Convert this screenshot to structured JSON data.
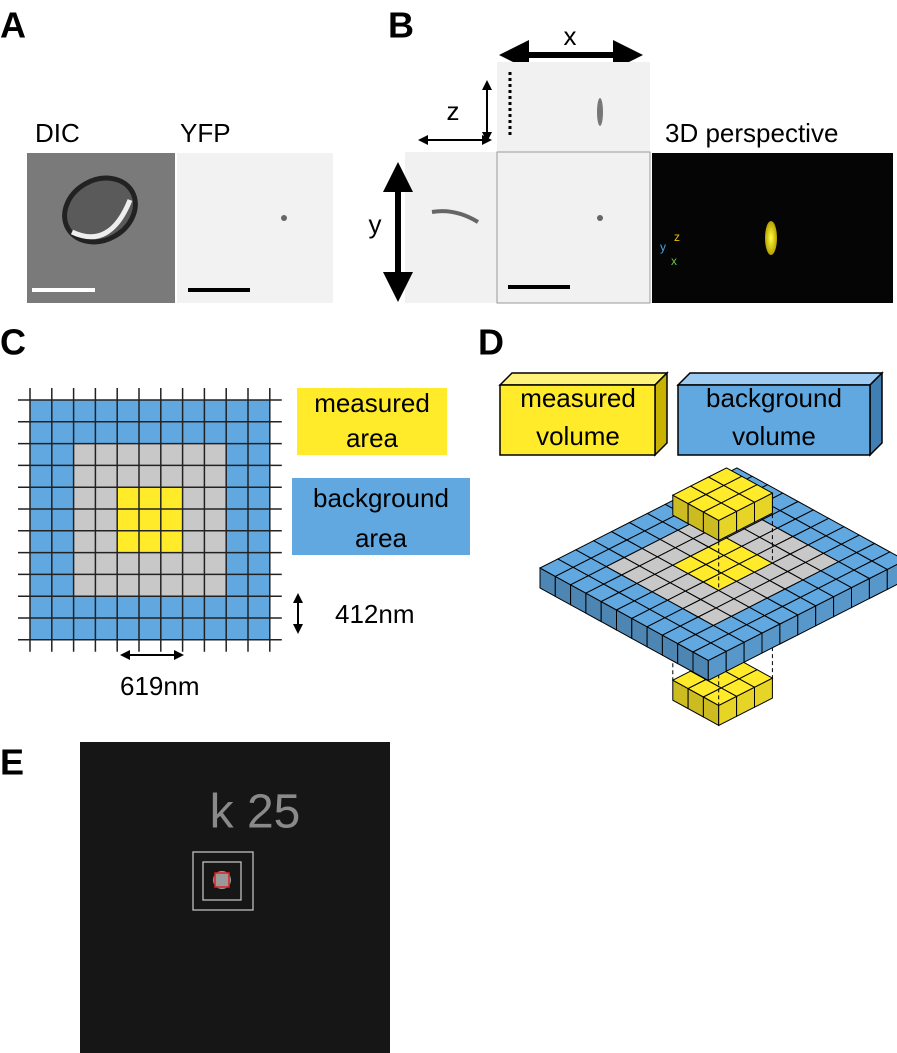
{
  "panel_labels": [
    "A",
    "B",
    "C",
    "D",
    "E"
  ],
  "panel_a": {
    "image_labels": [
      "DIC",
      "YFP"
    ]
  },
  "panel_b": {
    "axis_labels": {
      "x": "x",
      "z": "z",
      "y": "y"
    },
    "view_title": "3D perspective",
    "orientation_labels": [
      "y",
      "z",
      "x"
    ]
  },
  "panel_c": {
    "legend": [
      [
        "measured",
        "area"
      ],
      [
        "background",
        "area"
      ]
    ],
    "pixel_height": "412nm",
    "pixel_width": "619nm"
  },
  "panel_d": {
    "legend": [
      [
        "measured",
        "volume"
      ],
      [
        "background",
        "volume"
      ]
    ]
  },
  "panel_e": {
    "overlay_text": "k 25"
  }
}
